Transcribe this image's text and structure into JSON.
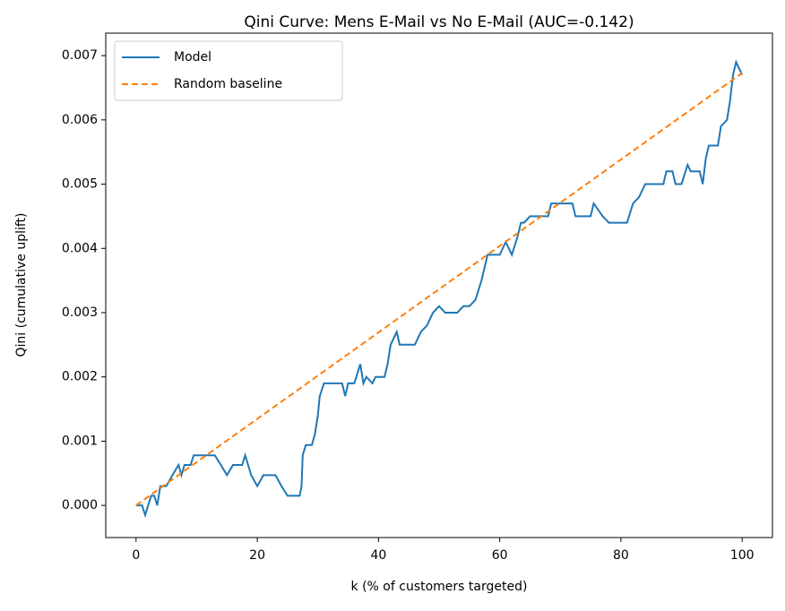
{
  "chart_data": {
    "type": "line",
    "title": "Qini Curve: Mens E-Mail vs No E-Mail (AUC=-0.142)",
    "xlabel": "k (% of customers targeted)",
    "ylabel": "Qini (cumulative uplift)",
    "xlim": [
      -5,
      105
    ],
    "xticks": [
      0,
      20,
      40,
      60,
      80,
      100
    ],
    "ylim": [
      -0.0005,
      0.00735
    ],
    "yticks": [
      {
        "value": 0,
        "label": "0.000"
      },
      {
        "value": 0.001,
        "label": "0.001"
      },
      {
        "value": 0.002,
        "label": "0.002"
      },
      {
        "value": 0.003,
        "label": "0.003"
      },
      {
        "value": 0.004,
        "label": "0.004"
      },
      {
        "value": 0.005,
        "label": "0.005"
      },
      {
        "value": 0.006,
        "label": "0.006"
      },
      {
        "value": 0.007,
        "label": "0.007"
      }
    ],
    "grid": false,
    "legend": "upper left",
    "series": [
      {
        "name": "Model",
        "color": "#1f77b4",
        "dash": false,
        "x": [
          0,
          1,
          1.5,
          2,
          2.5,
          3,
          3.5,
          4,
          5,
          6,
          7,
          7.5,
          8,
          9,
          9.5,
          13,
          14,
          15,
          16,
          17.5,
          18,
          18.5,
          19,
          20,
          21,
          23,
          24,
          25,
          27,
          27.3,
          27.5,
          28,
          29,
          29.5,
          30,
          30.3,
          31,
          34,
          34.5,
          35,
          36,
          37,
          37.5,
          38,
          39,
          39.5,
          41,
          41.5,
          42,
          43,
          43.5,
          46,
          47,
          48,
          49,
          50,
          51,
          53,
          54,
          55,
          56,
          57,
          58,
          60,
          61,
          62,
          63,
          63.5,
          64,
          65,
          68,
          68.5,
          72,
          72.5,
          75,
          75.5,
          77,
          78,
          81,
          82,
          83,
          84,
          87,
          87.5,
          88.5,
          89,
          90,
          91,
          91.5,
          93,
          93.5,
          94,
          94.5,
          96,
          96.5,
          97.5,
          98,
          98.5,
          99,
          100
        ],
        "values": [
          0,
          0,
          -0.00015,
          0,
          0.00015,
          0.00015,
          0,
          0.0003,
          0.0003,
          0.00047,
          0.00063,
          0.00047,
          0.00063,
          0.00063,
          0.00078,
          0.00078,
          0.00063,
          0.00047,
          0.00063,
          0.00063,
          0.00078,
          0.00063,
          0.00047,
          0.0003,
          0.00047,
          0.00047,
          0.0003,
          0.00015,
          0.00015,
          0.0003,
          0.00078,
          0.00094,
          0.00094,
          0.0011,
          0.0014,
          0.0017,
          0.0019,
          0.0019,
          0.0017,
          0.0019,
          0.0019,
          0.0022,
          0.0019,
          0.002,
          0.0019,
          0.002,
          0.002,
          0.0022,
          0.0025,
          0.0027,
          0.0025,
          0.0025,
          0.0027,
          0.0028,
          0.003,
          0.0031,
          0.003,
          0.003,
          0.0031,
          0.0031,
          0.0032,
          0.0035,
          0.0039,
          0.0039,
          0.0041,
          0.0039,
          0.0042,
          0.0044,
          0.0044,
          0.0045,
          0.0045,
          0.0047,
          0.0047,
          0.0045,
          0.0045,
          0.0047,
          0.0045,
          0.0044,
          0.0044,
          0.0047,
          0.0048,
          0.005,
          0.005,
          0.0052,
          0.0052,
          0.005,
          0.005,
          0.0053,
          0.0052,
          0.0052,
          0.005,
          0.0054,
          0.0056,
          0.0056,
          0.0059,
          0.006,
          0.0063,
          0.0067,
          0.0069,
          0.0067
        ]
      },
      {
        "name": "Random baseline",
        "color": "#ff7f0e",
        "dash": true,
        "x": [
          0,
          100
        ],
        "values": [
          0,
          0.00673
        ]
      }
    ]
  }
}
